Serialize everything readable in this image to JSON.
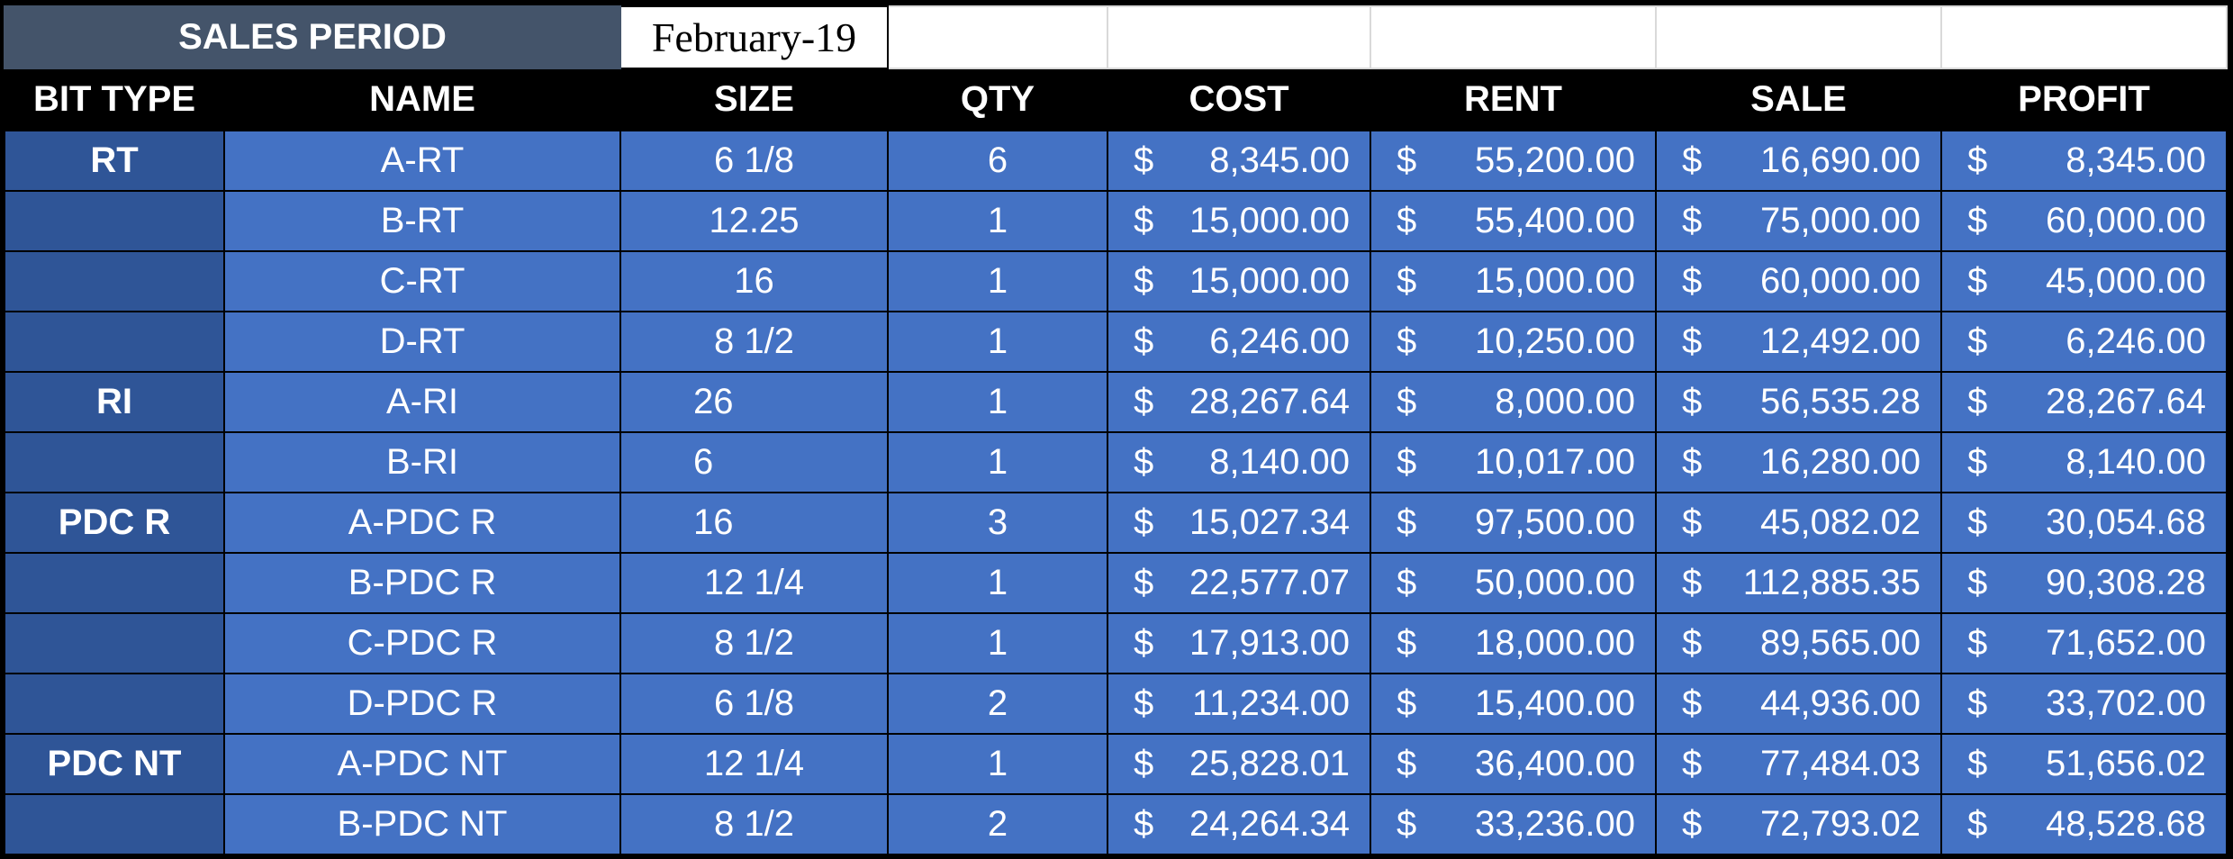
{
  "period": {
    "label": "SALES PERIOD",
    "value": "February-19"
  },
  "headers": [
    "BIT TYPE",
    "NAME",
    "SIZE",
    "QTY",
    "COST",
    "RENT",
    "SALE",
    "PROFIT"
  ],
  "currency": "$",
  "rows": [
    {
      "type": "RT",
      "name": "A-RT",
      "size": "6 1/8",
      "qty": "6",
      "cost": "8,345.00",
      "rent": "55,200.00",
      "sale": "16,690.00",
      "profit": "8,345.00"
    },
    {
      "type": "",
      "name": "B-RT",
      "size": "12.25",
      "qty": "1",
      "cost": "15,000.00",
      "rent": "55,400.00",
      "sale": "75,000.00",
      "profit": "60,000.00"
    },
    {
      "type": "",
      "name": "C-RT",
      "size": "16",
      "qty": "1",
      "cost": "15,000.00",
      "rent": "15,000.00",
      "sale": "60,000.00",
      "profit": "45,000.00"
    },
    {
      "type": "",
      "name": "D-RT",
      "size": "8 1/2",
      "qty": "1",
      "cost": "6,246.00",
      "rent": "10,250.00",
      "sale": "12,492.00",
      "profit": "6,246.00"
    },
    {
      "type": "RI",
      "name": "A-RI",
      "size": "26",
      "qty": "1",
      "cost": "28,267.64",
      "rent": "8,000.00",
      "sale": "56,535.28",
      "profit": "28,267.64"
    },
    {
      "type": "",
      "name": "B-RI",
      "size": "6",
      "qty": "1",
      "cost": "8,140.00",
      "rent": "10,017.00",
      "sale": "16,280.00",
      "profit": "8,140.00"
    },
    {
      "type": "PDC R",
      "name": "A-PDC R",
      "size": "16",
      "qty": "3",
      "cost": "15,027.34",
      "rent": "97,500.00",
      "sale": "45,082.02",
      "profit": "30,054.68"
    },
    {
      "type": "",
      "name": "B-PDC R",
      "size": "12 1/4",
      "qty": "1",
      "cost": "22,577.07",
      "rent": "50,000.00",
      "sale": "112,885.35",
      "profit": "90,308.28"
    },
    {
      "type": "",
      "name": "C-PDC R",
      "size": "8 1/2",
      "qty": "1",
      "cost": "17,913.00",
      "rent": "18,000.00",
      "sale": "89,565.00",
      "profit": "71,652.00"
    },
    {
      "type": "",
      "name": "D-PDC R",
      "size": "6 1/8",
      "qty": "2",
      "cost": "11,234.00",
      "rent": "15,400.00",
      "sale": "44,936.00",
      "profit": "33,702.00"
    },
    {
      "type": "PDC NT",
      "name": "A-PDC NT",
      "size": "12 1/4",
      "qty": "1",
      "cost": "25,828.01",
      "rent": "36,400.00",
      "sale": "77,484.03",
      "profit": "51,656.02"
    },
    {
      "type": "",
      "name": "B-PDC NT",
      "size": "8 1/2",
      "qty": "2",
      "cost": "24,264.34",
      "rent": "33,236.00",
      "sale": "72,793.02",
      "profit": "48,528.68"
    }
  ]
}
